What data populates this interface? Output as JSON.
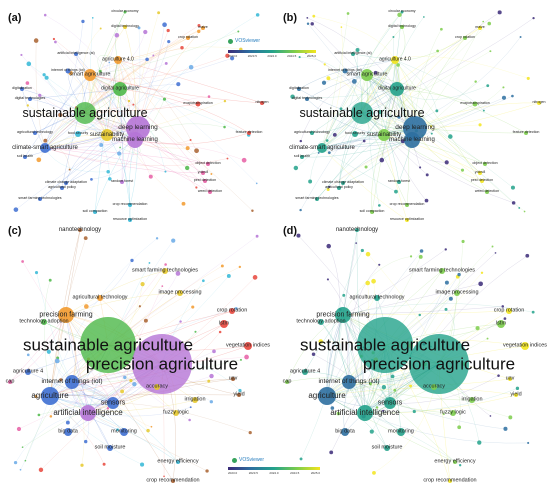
{
  "panels": [
    {
      "id": "a",
      "label": "(a)",
      "mode": "cluster",
      "big_labels": [
        "sustainable agriculture"
      ],
      "mid_labels": [
        "deep learning",
        "machine learning",
        "climate-smart agriculture",
        "sustainability",
        "smart agriculture",
        "agriculture 4.0",
        "digital agriculture"
      ],
      "small_labels": [
        "circular economy",
        "digital technology",
        "maize",
        "crop rotation",
        "artificial intelligence (ai)",
        "internet of things (iot)",
        "digitalization",
        "digital technologies",
        "agricultural technology",
        "food security",
        "evapotranspiration",
        "nitrogen",
        "feature detection",
        "soil health",
        "climate change adaptation",
        "agricultural policy",
        "smart farming technologies",
        "random forest",
        "object detection",
        "yolov8",
        "pest detection",
        "weed detection",
        "crop recommendation",
        "soil compaction",
        "resource optimization"
      ]
    },
    {
      "id": "b",
      "label": "(b)",
      "mode": "overlay",
      "big_labels": [
        "sustainable agriculture"
      ],
      "mid_labels": [
        "deep learning",
        "machine learning",
        "climate-smart agriculture",
        "sustainability",
        "smart agriculture",
        "agriculture 4.0",
        "digital agriculture"
      ],
      "small_labels": [
        "circular economy",
        "digital technology",
        "maize",
        "crop rotation",
        "artificial intelligence (ai)",
        "internet of things (iot)",
        "digitalization",
        "digital technologies",
        "agricultural technology",
        "food security",
        "evapotranspiration",
        "nitrogen",
        "feature detection",
        "soil health",
        "climate change adaptation",
        "agricultural policy",
        "smart farming technologies",
        "random forest",
        "object detection",
        "yolov8",
        "pest detection",
        "weed detection",
        "crop recommendation",
        "soil compaction",
        "resource optimization"
      ]
    },
    {
      "id": "c",
      "label": "(c)",
      "mode": "cluster",
      "big_labels": [
        "sustainable agriculture",
        "precision agriculture"
      ],
      "mid_labels": [
        "agriculture",
        "artificial intelligence",
        "sensors",
        "precision farming",
        "internet of things (iot)"
      ],
      "small_labels": [
        "nanotechnology",
        "smart farming technologies",
        "agricultural technology",
        "image processing",
        "technology adoption",
        "crop rotation",
        "lstm",
        "vegetation indices",
        "cap",
        "agriculture 4",
        "accuracy",
        "uav",
        "yield",
        "irrigation",
        "fuzzy logic",
        "big data",
        "monitoring",
        "soil moisture",
        "energy efficiency",
        "crop recommendation"
      ]
    },
    {
      "id": "d",
      "label": "(d)",
      "mode": "overlay",
      "big_labels": [
        "sustainable agriculture",
        "precision agriculture"
      ],
      "mid_labels": [
        "agriculture",
        "artificial intelligence",
        "sensors",
        "precision farming",
        "internet of things (iot)"
      ],
      "small_labels": [
        "nanotechnology",
        "smart farming technologies",
        "agricultural technology",
        "image processing",
        "technology adoption",
        "crop rotation",
        "lstm",
        "vegetation indices",
        "cap",
        "agriculture 4",
        "accuracy",
        "uav",
        "yield",
        "irrigation",
        "fuzzy logic",
        "big data",
        "monitoring",
        "soil moisture",
        "energy efficiency",
        "crop recommendation"
      ]
    }
  ],
  "vosviewer": {
    "logo_text": "VOSviewer",
    "scale_ticks": [
      "2023.0",
      "2023.5",
      "2024.0",
      "2024.5",
      "2025.0"
    ]
  },
  "colors": {
    "red": "#e8463c",
    "green": "#4cb848",
    "blue": "#3e6fd1",
    "yellow": "#e6c92b",
    "purple": "#b574d6",
    "cyan": "#33b7d6",
    "orange": "#f29a2e",
    "brown": "#a8612f",
    "pink": "#e65fa4",
    "lightblue": "#69a9e6",
    "v1": "#3b2a78",
    "v2": "#2d6fa0",
    "v3": "#23a28b",
    "v4": "#7ccd4b",
    "v5": "#f3e51e"
  }
}
